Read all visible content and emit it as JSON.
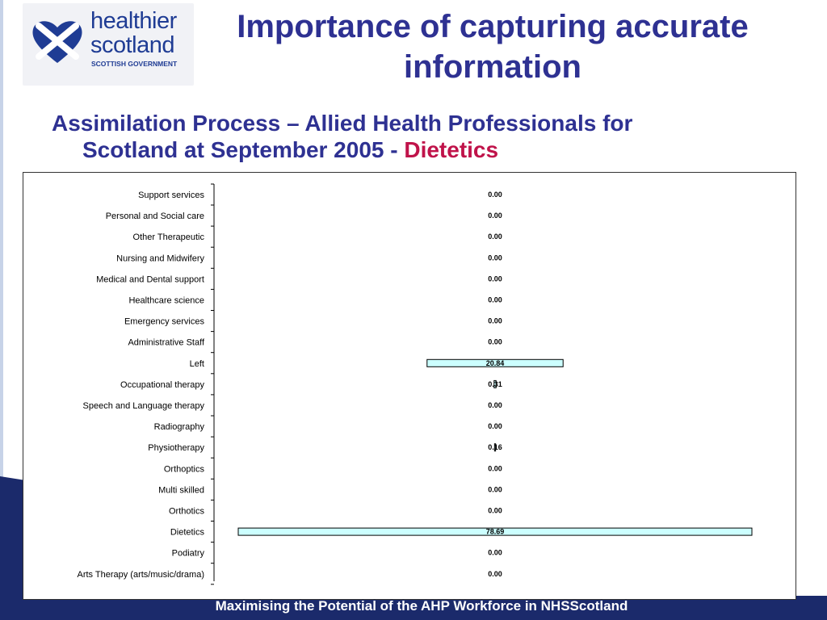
{
  "header": {
    "logo_line1": "healthier",
    "logo_line2": "scotland",
    "logo_line3": "SCOTTISH GOVERNMENT",
    "title_line1": "Importance of capturing accurate",
    "title_line2": "information"
  },
  "subtitle": {
    "line1": "Assimilation Process – Allied Health Professionals for",
    "line2": "Scotland at September 2005  - ",
    "accent": "Dietetics"
  },
  "colors": {
    "title": "#2e3192",
    "accent": "#c0134a",
    "band": "#1b2a6b",
    "bar_fill": "#ccffff"
  },
  "chart_data": {
    "type": "bar",
    "orientation": "horizontal",
    "categories": [
      "Support services",
      "Personal and Social care",
      "Other Therapeutic",
      "Nursing and Midwifery",
      "Medical and Dental support",
      "Healthcare science",
      "Emergency services",
      "Administrative Staff",
      "Left",
      "Occupational therapy",
      "Speech and Language therapy",
      "Radiography",
      "Physiotherapy",
      "Orthoptics",
      "Multi skilled",
      "Orthotics",
      "Dietetics",
      "Podiatry",
      "Arts Therapy (arts/music/drama)"
    ],
    "values": [
      0.0,
      0.0,
      0.0,
      0.0,
      0.0,
      0.0,
      0.0,
      0.0,
      20.84,
      0.31,
      0.0,
      0.0,
      0.16,
      0.0,
      0.0,
      0.0,
      78.69,
      0.0,
      0.0
    ],
    "value_labels": [
      "0.00",
      "0.00",
      "0.00",
      "0.00",
      "0.00",
      "0.00",
      "0.00",
      "0.00",
      "20.84",
      "0.31",
      "0.00",
      "0.00",
      "0.16",
      "0.00",
      "0.00",
      "0.00",
      "78.69",
      "0.00",
      "0.00"
    ],
    "xlim": [
      0,
      80
    ],
    "grid": false,
    "bars_centered": true
  },
  "footer": {
    "text": "Maximising the Potential of the AHP Workforce in NHSScotland"
  }
}
